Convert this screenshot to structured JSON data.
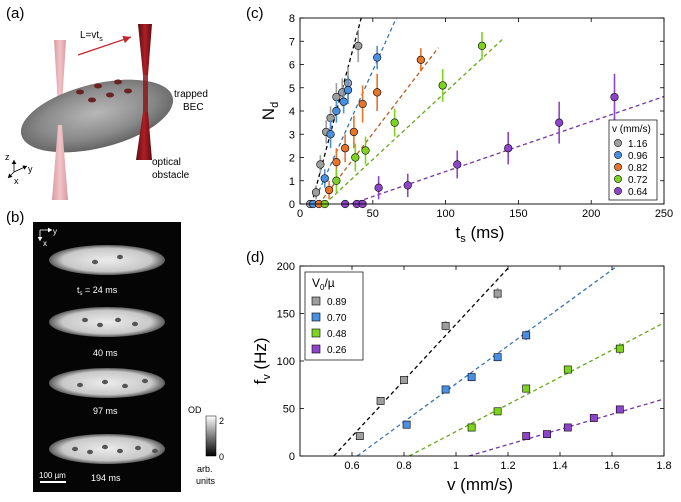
{
  "panels": {
    "a": {
      "label": "(a)",
      "length_label": "L=vt",
      "length_sub": "s",
      "bec_label_line1": "trapped",
      "bec_label_line2": "BEC",
      "obstacle_label_line1": "optical",
      "obstacle_label_line2": "obstacle",
      "axis_z": "z",
      "axis_y": "y",
      "axis_x": "x"
    },
    "b": {
      "label": "(b)",
      "axis_y": "y",
      "axis_x": "x",
      "frames": [
        {
          "time_label": "t",
          "time_sub": "s",
          "time_value": " = 24 ms"
        },
        {
          "time_value": "40 ms"
        },
        {
          "time_value": "97 ms"
        },
        {
          "time_value": "194 ms"
        }
      ],
      "scale_bar": "100 µm",
      "colorbar_title": "OD",
      "colorbar_max": "2",
      "colorbar_min": "0",
      "colorbar_units_line1": "arb.",
      "colorbar_units_line2": "units"
    }
  },
  "chart_data": [
    {
      "panel": "(c)",
      "type": "scatter",
      "xlabel": "t",
      "xlabel_sub": "s",
      "xlabel_unit": " (ms)",
      "ylabel": "N",
      "ylabel_sub": "d",
      "xlim": [
        0,
        250
      ],
      "ylim": [
        0,
        8
      ],
      "xticks": [
        "0",
        "50",
        "100",
        "150",
        "200",
        "250"
      ],
      "yticks": [
        "0",
        "1",
        "2",
        "3",
        "4",
        "5",
        "6",
        "7",
        "8"
      ],
      "legend_title": "v (mm/s)",
      "series": [
        {
          "name": "1.16",
          "color": "#9e9e9e",
          "x": [
            7,
            11,
            14,
            18,
            21,
            25,
            29,
            33,
            40
          ],
          "y": [
            0,
            0.5,
            1.7,
            3.1,
            3.7,
            4.6,
            4.8,
            5.2,
            6.8
          ],
          "err": [
            0.1,
            0.3,
            0.4,
            0.5,
            0.5,
            0.6,
            0.6,
            0.7,
            0.7
          ],
          "fit": {
            "x0": 8,
            "x1": 46,
            "slope": 0.235
          }
        },
        {
          "name": "0.96",
          "color": "#4a90e2",
          "x": [
            9,
            17,
            21,
            25,
            30,
            33,
            53
          ],
          "y": [
            0,
            1.1,
            3.0,
            4.0,
            4.4,
            4.9,
            6.3
          ],
          "err": [
            0.1,
            0.4,
            0.6,
            0.5,
            0.5,
            0.6,
            0.5
          ],
          "fit": {
            "x0": 9,
            "x1": 67,
            "slope": 0.14
          }
        },
        {
          "name": "0.82",
          "color": "#e8742a",
          "x": [
            13,
            20,
            25,
            31,
            37,
            43,
            53,
            83
          ],
          "y": [
            0,
            0.6,
            1.8,
            2.4,
            3.1,
            4.3,
            4.8,
            6.2
          ],
          "err": [
            0.1,
            0.4,
            0.6,
            0.6,
            0.7,
            0.8,
            0.8,
            0.5
          ],
          "fit": {
            "x0": 13,
            "x1": 95,
            "slope": 0.082
          }
        },
        {
          "name": "0.72",
          "color": "#7ed321",
          "x": [
            17,
            25,
            38,
            45,
            65,
            98,
            125
          ],
          "y": [
            0,
            1.0,
            2.0,
            2.3,
            3.5,
            5.1,
            6.8
          ],
          "err": [
            0.1,
            0.5,
            0.6,
            0.6,
            0.6,
            0.7,
            0.6
          ],
          "fit": {
            "x0": 17,
            "x1": 140,
            "slope": 0.058
          }
        },
        {
          "name": "0.64",
          "color": "#8e44c9",
          "x": [
            31,
            39,
            43,
            54,
            74,
            108,
            143,
            178,
            216
          ],
          "y": [
            0,
            0,
            0,
            0.7,
            0.8,
            1.7,
            2.4,
            3.5,
            4.6
          ],
          "err": [
            0.1,
            0.1,
            0.1,
            0.5,
            0.5,
            0.6,
            0.7,
            0.9,
            1.0
          ],
          "fit": {
            "x0": 35,
            "x1": 250,
            "slope": 0.0215
          }
        }
      ]
    },
    {
      "panel": "(d)",
      "type": "scatter",
      "xlabel": "v (mm/s)",
      "ylabel": "f",
      "ylabel_sub": "v",
      "ylabel_unit": " (Hz)",
      "xlim": [
        0.4,
        1.8
      ],
      "ylim": [
        0,
        200
      ],
      "xticks": [
        "0.6",
        "0.8",
        "1",
        "1.2",
        "1.4",
        "1.6",
        "1.8"
      ],
      "xtick_values": [
        0.6,
        0.8,
        1.0,
        1.2,
        1.4,
        1.6,
        1.8
      ],
      "yticks": [
        "0",
        "50",
        "100",
        "150",
        "200"
      ],
      "ytick_values": [
        0,
        50,
        100,
        150,
        200
      ],
      "legend_title": "V",
      "legend_title_sub": "0",
      "legend_title_rest": "/µ",
      "series": [
        {
          "name": "0.89",
          "color": "#9e9e9e",
          "x": [
            0.63,
            0.71,
            0.8,
            0.96,
            1.16
          ],
          "y": [
            21,
            58,
            80,
            137,
            171
          ],
          "err": [
            3,
            3,
            3,
            5,
            6
          ],
          "fit": {
            "x0": 0.53,
            "x1": 1.24,
            "slope": 295,
            "x_at_zero": 0.53
          }
        },
        {
          "name": "0.70",
          "color": "#4a90e2",
          "x": [
            0.81,
            0.96,
            1.06,
            1.16,
            1.27
          ],
          "y": [
            33,
            70,
            83,
            104,
            127
          ],
          "err": [
            3,
            3,
            4,
            4,
            5
          ],
          "fit": {
            "x0": 0.62,
            "x1": 1.66,
            "slope": 200,
            "x_at_zero": 0.62
          }
        },
        {
          "name": "0.48",
          "color": "#7ed321",
          "x": [
            1.06,
            1.16,
            1.27,
            1.43,
            1.63
          ],
          "y": [
            30,
            47,
            71,
            91,
            113
          ],
          "err": [
            3,
            3,
            4,
            4,
            6
          ],
          "fit": {
            "x0": 0.82,
            "x1": 1.8,
            "slope": 143,
            "x_at_zero": 0.82
          }
        },
        {
          "name": "0.26",
          "color": "#8e44c9",
          "x": [
            1.27,
            1.35,
            1.43,
            1.53,
            1.63
          ],
          "y": [
            21,
            23,
            30,
            40,
            49
          ],
          "err": [
            2,
            2,
            2,
            3,
            3
          ],
          "fit": {
            "x0": 1.05,
            "x1": 1.8,
            "slope": 80,
            "x_at_zero": 1.05
          }
        }
      ]
    }
  ]
}
